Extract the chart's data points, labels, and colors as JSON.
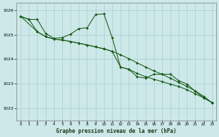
{
  "title": "Graphe pression niveau de la mer (hPa)",
  "bg_color": "#cce8e8",
  "plot_bg_color": "#cce8e8",
  "grid_color": "#aacccc",
  "line_color": "#1a5c1a",
  "xlim": [
    -0.5,
    23.5
  ],
  "ylim": [
    1021.5,
    1026.3
  ],
  "yticks": [
    1022,
    1023,
    1024,
    1025,
    1026
  ],
  "xticks": [
    0,
    1,
    2,
    3,
    4,
    5,
    6,
    7,
    8,
    9,
    10,
    11,
    12,
    13,
    14,
    15,
    16,
    17,
    18,
    19,
    20,
    21,
    22,
    23
  ],
  "s1x": [
    0,
    1,
    2,
    3,
    4,
    5,
    6,
    7,
    8,
    9,
    10,
    11,
    12,
    13,
    14,
    15,
    16,
    17,
    18,
    19,
    20,
    21,
    22,
    23
  ],
  "s1y": [
    1025.75,
    1025.62,
    1025.62,
    1025.05,
    1024.85,
    1024.88,
    1025.02,
    1025.25,
    1025.28,
    1025.82,
    1025.85,
    1024.88,
    1023.68,
    1023.58,
    1023.28,
    1023.22,
    1023.38,
    1023.38,
    1023.38,
    1023.12,
    1022.98,
    1022.68,
    1022.42,
    1022.22
  ],
  "s2x": [
    0,
    1,
    2,
    3,
    4,
    5,
    6,
    7,
    8,
    9,
    10,
    11,
    12,
    13,
    14,
    15,
    16,
    17,
    18,
    19,
    20,
    21,
    22,
    23
  ],
  "s2y": [
    1025.75,
    1025.62,
    1025.12,
    1024.92,
    1024.82,
    1024.78,
    1024.72,
    1024.65,
    1024.58,
    1024.5,
    1024.42,
    1024.32,
    1024.18,
    1024.02,
    1023.85,
    1023.68,
    1023.52,
    1023.38,
    1023.22,
    1023.05,
    1022.88,
    1022.7,
    1022.48,
    1022.22
  ],
  "s3x": [
    0,
    2,
    3,
    4,
    5,
    6,
    7,
    8,
    9,
    10,
    11,
    12,
    13,
    14,
    15,
    16,
    17,
    18,
    19,
    20,
    21,
    22,
    23
  ],
  "s3y": [
    1025.75,
    1025.12,
    1024.92,
    1024.82,
    1024.78,
    1024.72,
    1024.65,
    1024.58,
    1024.5,
    1024.42,
    1024.32,
    1023.68,
    1023.58,
    1023.42,
    1023.28,
    1023.18,
    1023.08,
    1022.98,
    1022.88,
    1022.75,
    1022.58,
    1022.42,
    1022.22
  ]
}
